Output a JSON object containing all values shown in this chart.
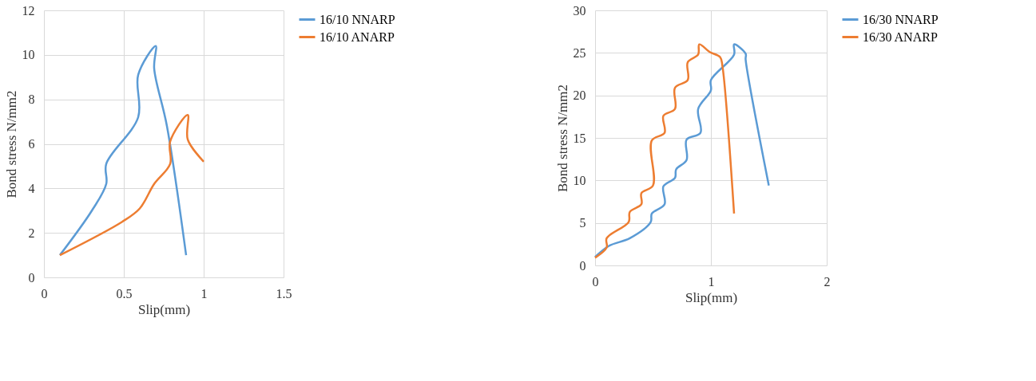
{
  "chart_data": [
    {
      "type": "line",
      "xlabel": "Slip(mm)",
      "ylabel": "Bond stress N/mm2",
      "xlim": [
        0,
        1.5
      ],
      "xticks": [
        0,
        0.5,
        1,
        1.5
      ],
      "ylim": [
        0,
        12
      ],
      "yticks": [
        0,
        2,
        4,
        6,
        8,
        10,
        12
      ],
      "grid": true,
      "legend": "right",
      "marker": "none",
      "series": [
        {
          "name": "16/10 NNARP",
          "color": "#5b9bd5",
          "x": [
            0.1,
            0.3,
            0.39,
            0.39,
            0.59,
            0.59,
            0.7,
            0.69,
            0.77,
            0.89
          ],
          "values": [
            1,
            3,
            4.2,
            5.1,
            7.2,
            9.1,
            10.4,
            9.4,
            6.8,
            1
          ]
        },
        {
          "name": "16/10 ANARP",
          "color": "#ed7d31",
          "x": [
            0.1,
            0.49,
            0.6,
            0.69,
            0.79,
            0.79,
            0.9,
            0.9,
            1
          ],
          "values": [
            1,
            2.5,
            3.1,
            4.2,
            5.1,
            6.1,
            7.3,
            6.2,
            5.2
          ]
        }
      ]
    },
    {
      "type": "line",
      "xlabel": "Slip(mm)",
      "ylabel": "Bond stress N/mm2",
      "xlim": [
        0,
        2
      ],
      "xticks": [
        0,
        1,
        2
      ],
      "ylim": [
        0,
        30
      ],
      "yticks": [
        0,
        5,
        10,
        15,
        20,
        25,
        30
      ],
      "grid": true,
      "legend": "right",
      "marker": "none",
      "series": [
        {
          "name": "16/30 NNARP",
          "color": "#5b9bd5",
          "x": [
            0,
            0.12,
            0.3,
            0.48,
            0.49,
            0.6,
            0.59,
            0.69,
            0.7,
            0.79,
            0.79,
            0.91,
            0.89,
            1.0,
            1.0,
            1.2,
            1.2,
            1.3,
            1.3,
            1.5
          ],
          "values": [
            1,
            2.3,
            3.2,
            5.1,
            6.1,
            7.2,
            9.3,
            10.3,
            11.3,
            12.4,
            14.8,
            15.6,
            18.4,
            20.6,
            21.8,
            24.8,
            26,
            24.9,
            24.2,
            9.4
          ]
        },
        {
          "name": "16/30 ANARP",
          "color": "#ed7d31",
          "x": [
            0,
            0.1,
            0.1,
            0.29,
            0.3,
            0.4,
            0.4,
            0.5,
            0.49,
            0.6,
            0.59,
            0.69,
            0.69,
            0.8,
            0.8,
            0.89,
            0.9,
            0.99,
            1.08,
            1.1,
            1.2
          ],
          "values": [
            0.9,
            2.1,
            3.2,
            5.1,
            6.3,
            7.2,
            8.5,
            9.4,
            14.7,
            15.6,
            17.6,
            18.4,
            20.9,
            21.8,
            23.9,
            24.8,
            26,
            25.1,
            24.5,
            23.4,
            6.1
          ]
        }
      ]
    }
  ]
}
